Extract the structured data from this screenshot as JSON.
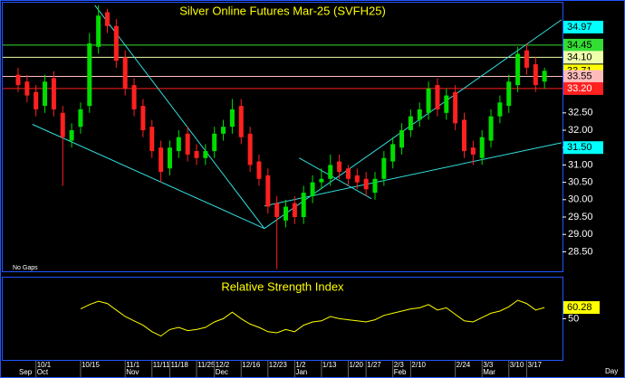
{
  "chart_data": [
    {
      "type": "candlestick",
      "title": "Silver Online Futures Mar-25 (SVFH25)",
      "note": "No Gaps",
      "open": [
        33.6,
        33.4,
        33.1,
        32.7,
        33.5,
        32.5,
        31.7,
        32.1,
        32.7,
        34.4,
        35.4,
        35.0,
        34.1,
        33.3,
        32.7,
        32.1,
        31.5,
        30.9,
        31.4,
        31.9,
        31.4,
        31.2,
        31.4,
        31.9,
        32.1,
        32.7,
        31.9,
        31.1,
        30.7,
        29.9,
        29.4,
        29.9,
        29.5,
        30.1,
        30.5,
        30.6,
        31.1,
        30.9,
        30.7,
        30.6,
        30.2,
        30.6,
        31.1,
        31.5,
        32.0,
        32.3,
        32.5,
        33.3,
        32.5,
        33.1,
        32.3,
        31.5,
        31.2,
        31.7,
        32.4,
        32.7,
        33.3,
        34.3,
        33.9,
        33.4
      ],
      "high": [
        33.8,
        33.6,
        33.3,
        33.6,
        33.7,
        32.7,
        32.2,
        32.8,
        34.8,
        35.6,
        35.5,
        35.2,
        34.3,
        33.5,
        32.9,
        32.3,
        31.7,
        31.7,
        32.0,
        32.1,
        31.6,
        31.6,
        32.1,
        32.3,
        32.9,
        32.9,
        32.1,
        31.3,
        30.9,
        30.1,
        30.0,
        30.1,
        30.4,
        30.7,
        30.9,
        31.3,
        31.3,
        31.0,
        30.9,
        30.8,
        30.8,
        31.4,
        31.8,
        32.2,
        32.6,
        32.8,
        33.4,
        33.5,
        33.2,
        33.3,
        32.5,
        31.7,
        32.0,
        32.6,
        33.0,
        33.6,
        34.4,
        34.5,
        34.1,
        33.8
      ],
      "low": [
        33.1,
        32.8,
        32.4,
        32.5,
        32.4,
        30.4,
        31.5,
        31.9,
        32.5,
        34.2,
        34.8,
        33.8,
        33.0,
        32.4,
        31.8,
        31.2,
        30.5,
        30.7,
        31.2,
        31.1,
        31.0,
        31.0,
        31.2,
        31.7,
        31.9,
        31.6,
        30.8,
        30.4,
        29.6,
        28.0,
        29.2,
        29.3,
        29.3,
        29.9,
        30.3,
        30.4,
        30.6,
        30.4,
        30.3,
        30.1,
        30.0,
        30.4,
        30.9,
        31.3,
        31.8,
        32.1,
        32.3,
        32.4,
        32.3,
        32.0,
        31.2,
        31.0,
        31.0,
        31.5,
        32.2,
        32.5,
        33.1,
        33.6,
        33.1,
        33.2
      ],
      "close": [
        33.3,
        33.0,
        32.6,
        33.4,
        32.6,
        31.8,
        32.0,
        32.6,
        34.5,
        35.3,
        35.0,
        34.0,
        33.2,
        32.6,
        32.0,
        31.4,
        30.8,
        31.5,
        31.8,
        31.3,
        31.2,
        31.4,
        31.9,
        32.1,
        32.6,
        31.8,
        31.0,
        30.6,
        29.8,
        29.5,
        29.8,
        29.5,
        30.2,
        30.5,
        30.6,
        31.0,
        30.8,
        30.6,
        30.5,
        30.3,
        30.6,
        31.2,
        31.6,
        32.0,
        32.4,
        32.6,
        33.2,
        32.6,
        33.0,
        32.2,
        31.4,
        31.3,
        31.8,
        32.4,
        32.8,
        33.4,
        34.2,
        33.8,
        33.3,
        33.71
      ],
      "up_color": "#00dd00",
      "down_color": "#ff2020",
      "ylim": [
        27.99,
        35.62
      ],
      "yticks": [
        {
          "value": 28.5,
          "label": "28.50"
        },
        {
          "value": 29,
          "label": "29.00"
        },
        {
          "value": 29.5,
          "label": "29.50"
        },
        {
          "value": 30,
          "label": "30.00"
        },
        {
          "value": 30.5,
          "label": "30.50"
        },
        {
          "value": 31,
          "label": "31.00"
        },
        {
          "value": 31.5,
          "label": "31.50"
        },
        {
          "value": 32,
          "label": "32.00"
        },
        {
          "value": 32.5,
          "label": "32.50"
        }
      ],
      "price_markers": [
        {
          "value": 34.97,
          "label": "34.97",
          "color": "#00ffff",
          "line": false
        },
        {
          "value": 34.45,
          "label": "34.45",
          "color": "#33dd33",
          "line": true
        },
        {
          "value": 34.1,
          "label": "34.10",
          "color": "#eeffaa",
          "line": true
        },
        {
          "value": 33.71,
          "label": "33.71",
          "color": "#ffff00",
          "line": false
        },
        {
          "value": 33.55,
          "label": "33.55",
          "color": "#ffbbbb",
          "line": true
        },
        {
          "value": 33.2,
          "label": "33.20",
          "color": "#ff2020",
          "line": true
        },
        {
          "value": 31.5,
          "label": "31.50",
          "color": "#00ffff",
          "line": false
        }
      ],
      "trendline_color": "#33dddd",
      "trendlines": [
        {
          "from": [
            8.6,
            35.6
          ],
          "to": [
            27.6,
            29.17
          ]
        },
        {
          "from": [
            1.6,
            32.17
          ],
          "to": [
            27.6,
            29.17
          ]
        },
        {
          "from": [
            27.6,
            29.17
          ],
          "to": [
            60.9,
            35.18
          ]
        },
        {
          "from": [
            27.6,
            29.82
          ],
          "to": [
            60.9,
            31.64
          ]
        },
        {
          "from": [
            31.5,
            31.2
          ],
          "to": [
            39.6,
            30.03
          ]
        }
      ]
    },
    {
      "type": "line",
      "title": "Relative Strength Index",
      "color": "#ffff00",
      "categories": [
        null,
        null,
        "10/1",
        null,
        null,
        null,
        null,
        "10/15",
        null,
        null,
        null,
        null,
        "11/1",
        null,
        null,
        "11/11",
        null,
        "11/18",
        null,
        null,
        "11/25",
        null,
        "12/2",
        null,
        null,
        "12/16",
        null,
        null,
        "12/23",
        null,
        null,
        "1/2",
        null,
        null,
        "1/13",
        null,
        null,
        "1/20",
        null,
        "1/27",
        null,
        null,
        "2/3",
        null,
        "2/10",
        null,
        null,
        null,
        null,
        "2/24",
        null,
        null,
        "3/3",
        null,
        null,
        "3/10",
        null,
        "3/17",
        null,
        null
      ],
      "months": [
        "Sep",
        null,
        "Oct",
        null,
        null,
        null,
        null,
        null,
        null,
        null,
        null,
        null,
        "Nov",
        null,
        null,
        null,
        null,
        null,
        null,
        null,
        null,
        null,
        "Dec",
        null,
        null,
        null,
        null,
        null,
        null,
        null,
        null,
        "Jan",
        null,
        null,
        null,
        null,
        null,
        null,
        null,
        null,
        null,
        null,
        "Feb",
        null,
        null,
        null,
        null,
        null,
        null,
        null,
        null,
        null,
        "Mar",
        null,
        null,
        null,
        null,
        null,
        null,
        null
      ],
      "axis_unit": "Day",
      "values": [
        null,
        null,
        null,
        null,
        null,
        null,
        null,
        59,
        63,
        66,
        64,
        58,
        52,
        48,
        44,
        38,
        34,
        40,
        42,
        39,
        40,
        42,
        47,
        50,
        56,
        50,
        45,
        42,
        38,
        37,
        40,
        38,
        44,
        47,
        48,
        52,
        50,
        49,
        48,
        47,
        49,
        53,
        55,
        57,
        59,
        60,
        63,
        58,
        60,
        54,
        48,
        47,
        51,
        55,
        57,
        61,
        67,
        64,
        58,
        60.28
      ],
      "last_value": 60.28,
      "last_color": "#ffff00",
      "ylim": [
        12,
        87
      ],
      "yticks": [
        50
      ]
    }
  ]
}
